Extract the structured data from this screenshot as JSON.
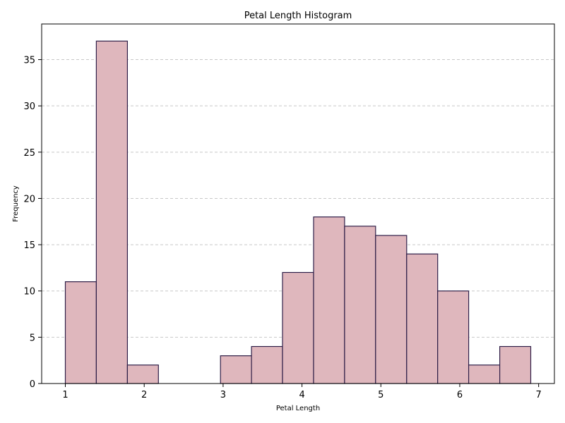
{
  "chart_data": {
    "type": "bar",
    "title": "Petal Length Histogram",
    "xlabel": "Petal Length",
    "ylabel": "Frequency",
    "bin_edges": [
      1.0,
      1.393,
      1.787,
      2.18,
      2.573,
      2.967,
      3.36,
      3.753,
      4.147,
      4.54,
      4.933,
      5.327,
      5.72,
      6.113,
      6.507,
      6.9
    ],
    "values": [
      11,
      37,
      2,
      0,
      0,
      3,
      4,
      12,
      18,
      17,
      16,
      14,
      10,
      2,
      4
    ],
    "xlim": [
      0.7,
      7.2
    ],
    "ylim": [
      0,
      38.85
    ],
    "xticks": [
      1,
      2,
      3,
      4,
      5,
      6,
      7
    ],
    "yticks": [
      0,
      5,
      10,
      15,
      20,
      25,
      30,
      35
    ],
    "grid": "horizontal-dashed",
    "colors": {
      "bar_fill": "#dfb7bd",
      "bar_edge": "#2f1f48",
      "grid": "#c8c8c8",
      "axis": "#000000"
    }
  }
}
